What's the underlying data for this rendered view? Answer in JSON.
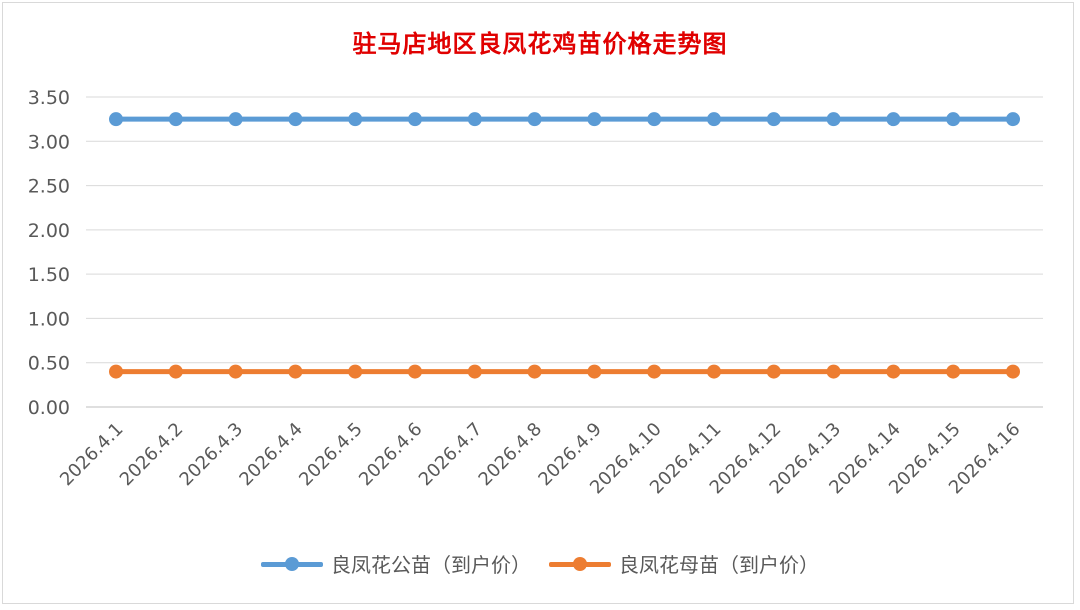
{
  "chart_data": {
    "type": "line",
    "title": "驻马店地区良凤花鸡苗价格走势图",
    "categories": [
      "2026.4.1",
      "2026.4.2",
      "2026.4.3",
      "2026.4.4",
      "2026.4.5",
      "2026.4.6",
      "2026.4.7",
      "2026.4.8",
      "2026.4.9",
      "2026.4.10",
      "2026.4.11",
      "2026.4.12",
      "2026.4.13",
      "2026.4.14",
      "2026.4.15",
      "2026.4.16"
    ],
    "series": [
      {
        "name": "良凤花公苗（到户价）",
        "color": "#5b9bd5",
        "values": [
          3.25,
          3.25,
          3.25,
          3.25,
          3.25,
          3.25,
          3.25,
          3.25,
          3.25,
          3.25,
          3.25,
          3.25,
          3.25,
          3.25,
          3.25,
          3.25
        ]
      },
      {
        "name": "良凤花母苗（到户价）",
        "color": "#ed7d31",
        "values": [
          0.4,
          0.4,
          0.4,
          0.4,
          0.4,
          0.4,
          0.4,
          0.4,
          0.4,
          0.4,
          0.4,
          0.4,
          0.4,
          0.4,
          0.4,
          0.4
        ]
      }
    ],
    "yticks": [
      "0.00",
      "0.50",
      "1.00",
      "1.50",
      "2.00",
      "2.50",
      "3.00",
      "3.50"
    ],
    "ylim": [
      0,
      3.5
    ],
    "grid": true,
    "legend": "bottom"
  }
}
